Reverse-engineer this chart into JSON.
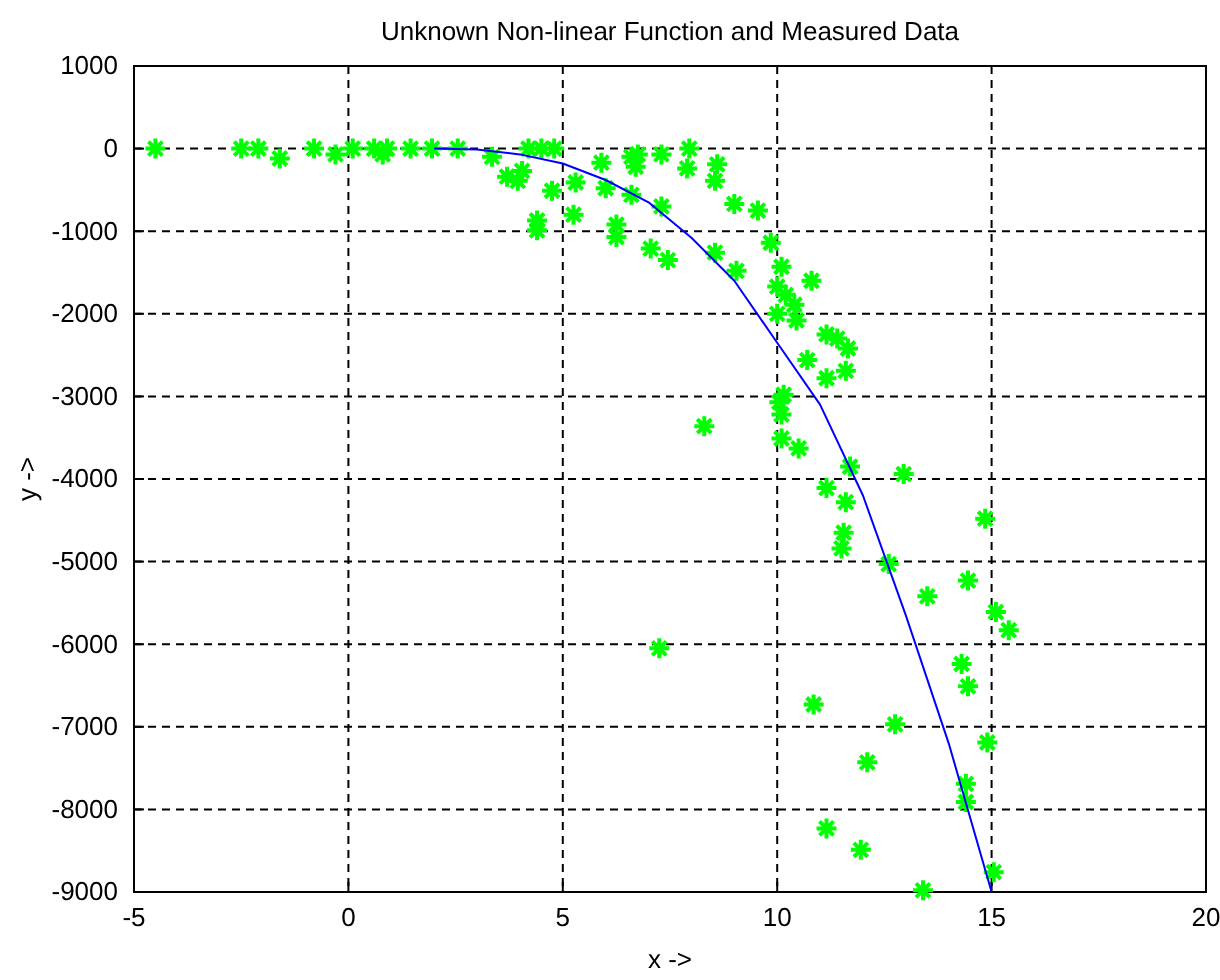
{
  "chart_data": {
    "type": "scatter",
    "title": "Unknown Non-linear Function and Measured Data",
    "xlabel": "x ->",
    "ylabel": "y ->",
    "xlim": [
      -5,
      20
    ],
    "xticks": [
      -5,
      0,
      5,
      10,
      15,
      20
    ],
    "ylim": [
      -9000,
      1000
    ],
    "yticks": [
      -9000,
      -8000,
      -7000,
      -6000,
      -5000,
      -4000,
      -3000,
      -2000,
      -1000,
      0,
      1000
    ],
    "grid": true,
    "series": [
      {
        "marker": "cross",
        "color": "#00ff00",
        "x": [
          -4.5,
          -2.5,
          -2.1,
          -1.6,
          -0.8,
          -0.3,
          0.1,
          0.6,
          0.8,
          0.9,
          1.45,
          1.95,
          2.55,
          3.35,
          3.7,
          3.95,
          4.05,
          4.2,
          4.5,
          4.8,
          4.4,
          4.4,
          4.75,
          5.3,
          5.25,
          5.9,
          6.6,
          6.75,
          6.7,
          7.3,
          7.95,
          7.9,
          8.6,
          8.55,
          6.0,
          6.6,
          6.25,
          6.25,
          7.3,
          7.05,
          7.45,
          9.0,
          9.55,
          9.85,
          8.55,
          9.05,
          10.1,
          10.8,
          10.0,
          10.2,
          10.4,
          10.0,
          10.45,
          11.15,
          11.4,
          11.65,
          10.7,
          11.6,
          11.15,
          10.15,
          10.05,
          10.1,
          8.3,
          10.1,
          10.5,
          11.7,
          12.95,
          11.15,
          11.6,
          11.55,
          11.5,
          12.6,
          14.85,
          14.45,
          13.5,
          15.1,
          15.4,
          14.3,
          7.25,
          14.45,
          10.85,
          12.75,
          14.9,
          12.1,
          14.4,
          14.4,
          11.15,
          11.95,
          15.05,
          13.4
        ],
        "values": [
          0,
          0,
          0,
          -120,
          0,
          -70,
          0,
          0,
          -70,
          0,
          0,
          0,
          0,
          -100,
          -340,
          -390,
          -270,
          0,
          0,
          0,
          -870,
          -990,
          -510,
          -410,
          -800,
          -170,
          -100,
          -70,
          -220,
          -70,
          0,
          -240,
          -190,
          -390,
          -480,
          -560,
          -920,
          -1070,
          -700,
          -1210,
          -1350,
          -670,
          -750,
          -1140,
          -1260,
          -1480,
          -1430,
          -1600,
          -1670,
          -1770,
          -1890,
          -2000,
          -2080,
          -2250,
          -2300,
          -2420,
          -2560,
          -2690,
          -2780,
          -2980,
          -3070,
          -3220,
          -3360,
          -3510,
          -3630,
          -3850,
          -3940,
          -4110,
          -4280,
          -4650,
          -4840,
          -5030,
          -4480,
          -5230,
          -5420,
          -5610,
          -5830,
          -6240,
          -6050,
          -6510,
          -6730,
          -6970,
          -7190,
          -7430,
          -7690,
          -7910,
          -8230,
          -8490,
          -8760,
          -8980
        ]
      },
      {
        "type": "line",
        "marker": "none",
        "line_style": "solid",
        "color": "#0000ff",
        "x": [
          2,
          3,
          4,
          5,
          6,
          7,
          8,
          9,
          10,
          11,
          12,
          13,
          14,
          15
        ],
        "values": [
          0,
          -10,
          -70,
          -180,
          -380,
          -650,
          -1080,
          -1600,
          -2350,
          -3100,
          -4200,
          -5650,
          -7200,
          -9000
        ]
      }
    ]
  }
}
